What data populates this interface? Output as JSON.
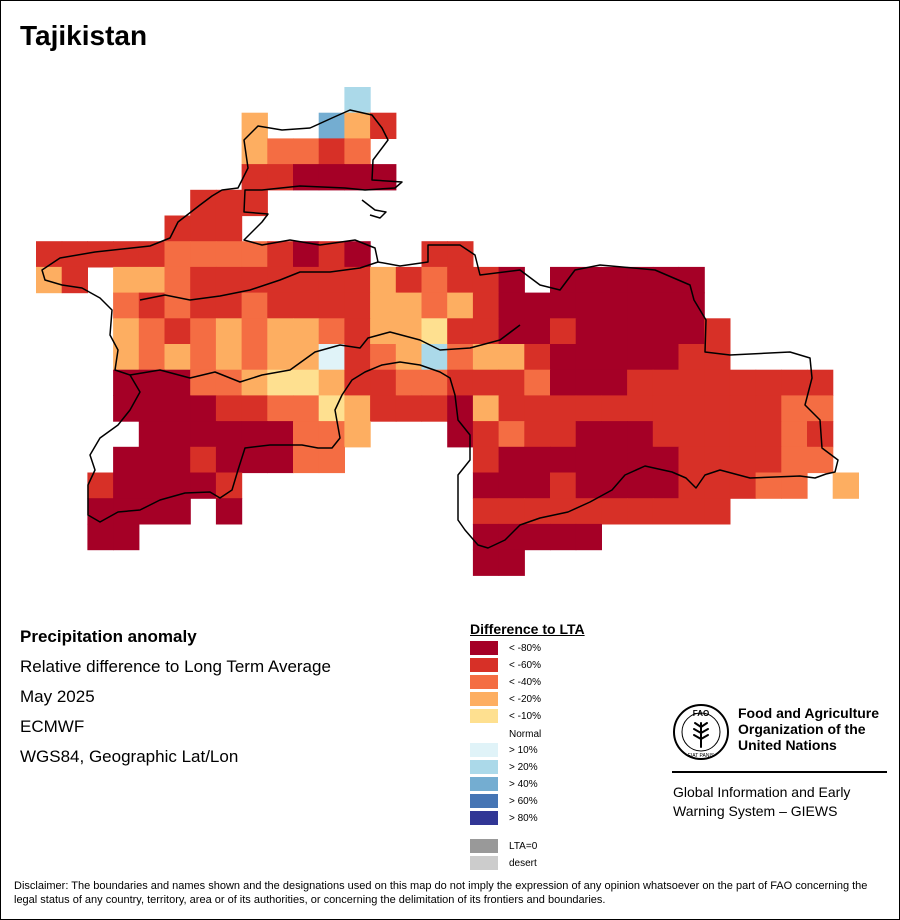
{
  "title": "Tajikistan",
  "info": {
    "heading": "Precipitation anomaly",
    "subtitle": "Relative difference to Long Term Average",
    "period": "May 2025",
    "source": "ECMWF",
    "projection": "WGS84, Geographic Lat/Lon"
  },
  "legend": {
    "title": "Difference to LTA",
    "normal_label": "Normal",
    "items": [
      {
        "label": "< -80%",
        "color": "#a50026"
      },
      {
        "label": "< -60%",
        "color": "#d73027"
      },
      {
        "label": "< -40%",
        "color": "#f46d43"
      },
      {
        "label": "< -20%",
        "color": "#fdae61"
      },
      {
        "label": "< -10%",
        "color": "#fee090"
      },
      {
        "label": "> 10%",
        "color": "#e0f3f8"
      },
      {
        "label": "> 20%",
        "color": "#abd9e9"
      },
      {
        "label": "> 40%",
        "color": "#74add1"
      },
      {
        "label": "> 60%",
        "color": "#4575b4"
      },
      {
        "label": "> 80%",
        "color": "#313695"
      },
      {
        "label": "LTA=0",
        "color": "#999999"
      },
      {
        "label": "desert",
        "color": "#cccccc"
      }
    ]
  },
  "logo": {
    "name_line1": "Food and Agriculture",
    "name_line2": "Organization of the",
    "name_line3": "United Nations",
    "emblem_letters": "FAO",
    "motto": "FIAT PANIS"
  },
  "giews": {
    "line1": "Global Information and Early",
    "line2": "Warning System – GIEWS"
  },
  "disclaimer": "Disclaimer: The boundaries and names shown and the designations used on this map do not imply the expression of any opinion whatsoever on the part of FAO concerning the legal status of any country, territory, area or of its authorities, or concerning the delimitation of its frontiers and boundaries."
}
